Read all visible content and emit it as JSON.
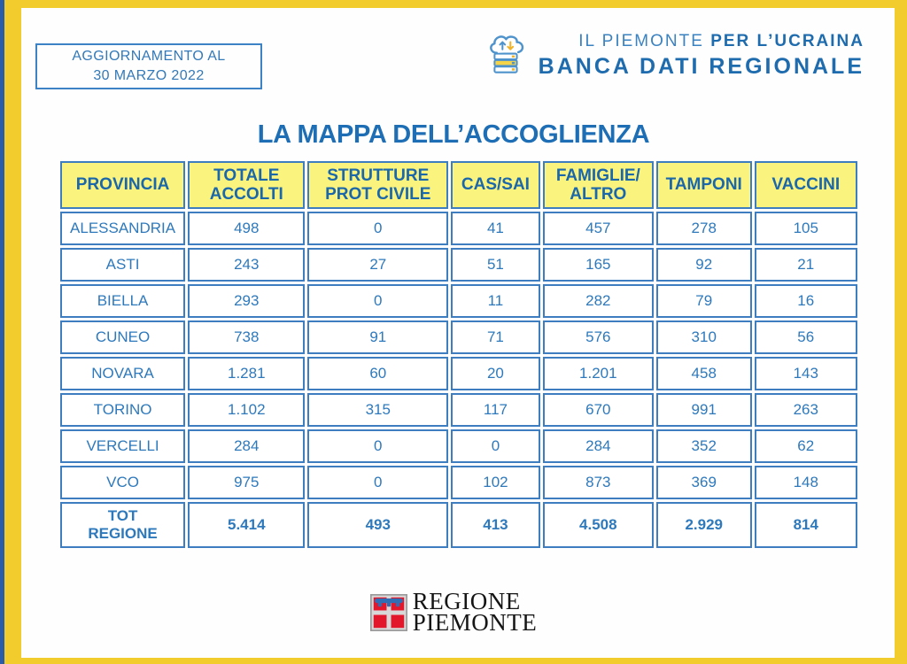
{
  "title": "LA MAPPA DELL’ACCOGLIENZA",
  "update_box": {
    "line1": "AGGIORNAMENTO AL",
    "line2": "30 MARZO 2022"
  },
  "brand": {
    "line1_regular": "IL PIEMONTE ",
    "line1_bold": "PER L’UCRAINA",
    "line2": "BANCA DATI REGIONALE",
    "icon": "cloud-database-icon"
  },
  "chart_data": {
    "type": "table",
    "title": "LA MAPPA DELL’ACCOGLIENZA",
    "columns": [
      "PROVINCIA",
      "TOTALE\nACCOLTI",
      "STRUTTURE\nPROT CIVILE",
      "CAS/SAI",
      "FAMIGLIE/\nALTRO",
      "TAMPONI",
      "VACCINI"
    ],
    "rows": [
      [
        "ALESSANDRIA",
        "498",
        "0",
        "41",
        "457",
        "278",
        "105"
      ],
      [
        "ASTI",
        "243",
        "27",
        "51",
        "165",
        "92",
        "21"
      ],
      [
        "BIELLA",
        "293",
        "0",
        "11",
        "282",
        "79",
        "16"
      ],
      [
        "CUNEO",
        "738",
        "91",
        "71",
        "576",
        "310",
        "56"
      ],
      [
        "NOVARA",
        "1.281",
        "60",
        "20",
        "1.201",
        "458",
        "143"
      ],
      [
        "TORINO",
        "1.102",
        "315",
        "117",
        "670",
        "991",
        "263"
      ],
      [
        "VERCELLI",
        "284",
        "0",
        "0",
        "284",
        "352",
        "62"
      ],
      [
        "VCO",
        "975",
        "0",
        "102",
        "873",
        "369",
        "148"
      ]
    ],
    "total_row": [
      "TOT\nREGIONE",
      "5.414",
      "493",
      "413",
      "4.508",
      "2.929",
      "814"
    ]
  },
  "footer": {
    "logo_icon": "piemonte-shield-icon",
    "logo_line1": "REGIONE",
    "logo_line2": "PIEMONTE"
  },
  "colors": {
    "frame_yellow": "#F2CB2D",
    "edge_blue": "#2B5CA8",
    "header_bg_yellow": "#FAF37E",
    "table_border_blue": "#3D7DC0",
    "body_text_blue": "#2E79BC",
    "header_text_blue": "#1B67AB",
    "title_blue": "#1D6EB4",
    "brand_blue": "#1E6BAD",
    "logo_red": "#E3172C"
  }
}
